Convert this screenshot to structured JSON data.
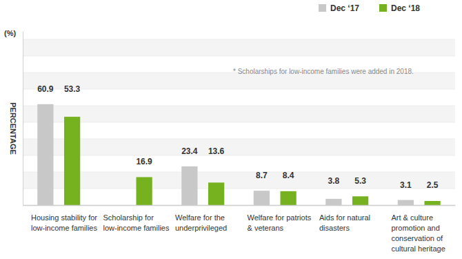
{
  "chart_data": {
    "type": "bar",
    "y_label": "PERCENTAGE",
    "y_unit": "(%)",
    "annotation": "* Scholarships for low-income families were added in 2018.",
    "categories": [
      "Housing stability for low-income families",
      "Scholarship for low-income families",
      "Welfare for the underprivileged",
      "Welfare for patriots & veterans",
      "Aids for natural disasters",
      "Art & culture promotion and conservation of cultural heritage"
    ],
    "series": [
      {
        "name": "Dec ‘17",
        "color": "#c8c8c8",
        "values": [
          60.9,
          null,
          23.4,
          8.7,
          3.8,
          3.1
        ]
      },
      {
        "name": "Dec ‘18",
        "color": "#76b21f",
        "values": [
          53.3,
          16.9,
          13.6,
          8.4,
          5.3,
          2.5
        ]
      }
    ],
    "ylim": [
      0,
      105
    ],
    "yticks": [
      0,
      10,
      20,
      30,
      40,
      50,
      60,
      70,
      80,
      90,
      100
    ],
    "grid": true,
    "legend": "upper right",
    "data_labels": true,
    "tick_labels": "x"
  }
}
